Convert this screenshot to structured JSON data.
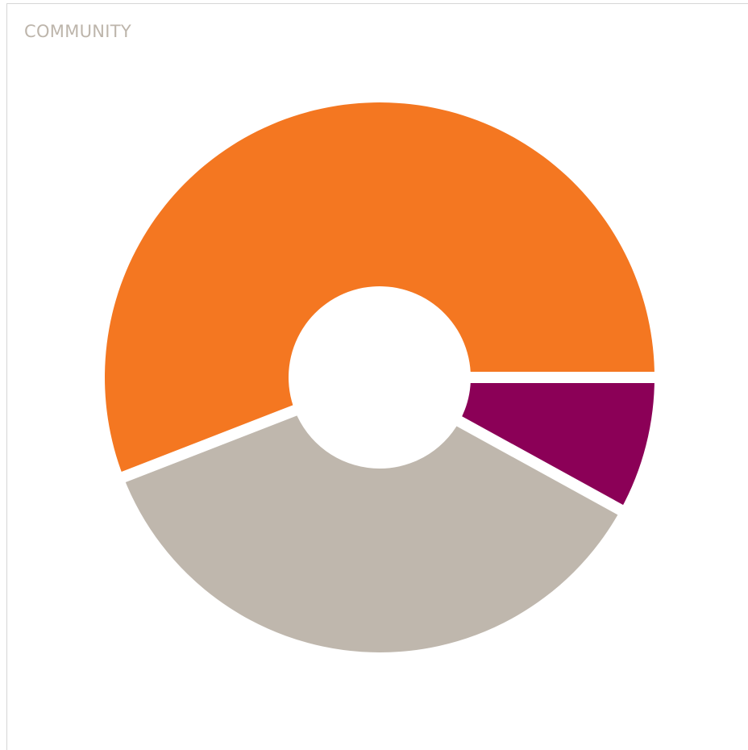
{
  "card": {
    "title": "COMMUNITY"
  },
  "chart_data": {
    "type": "pie",
    "donut": true,
    "title": "",
    "slices": [
      {
        "value": 55.9,
        "color": "#f47721"
      },
      {
        "value": 36.1,
        "color": "#bfb7ad"
      },
      {
        "value": 8.0,
        "color": "#8b0057"
      }
    ],
    "legend": "none"
  }
}
